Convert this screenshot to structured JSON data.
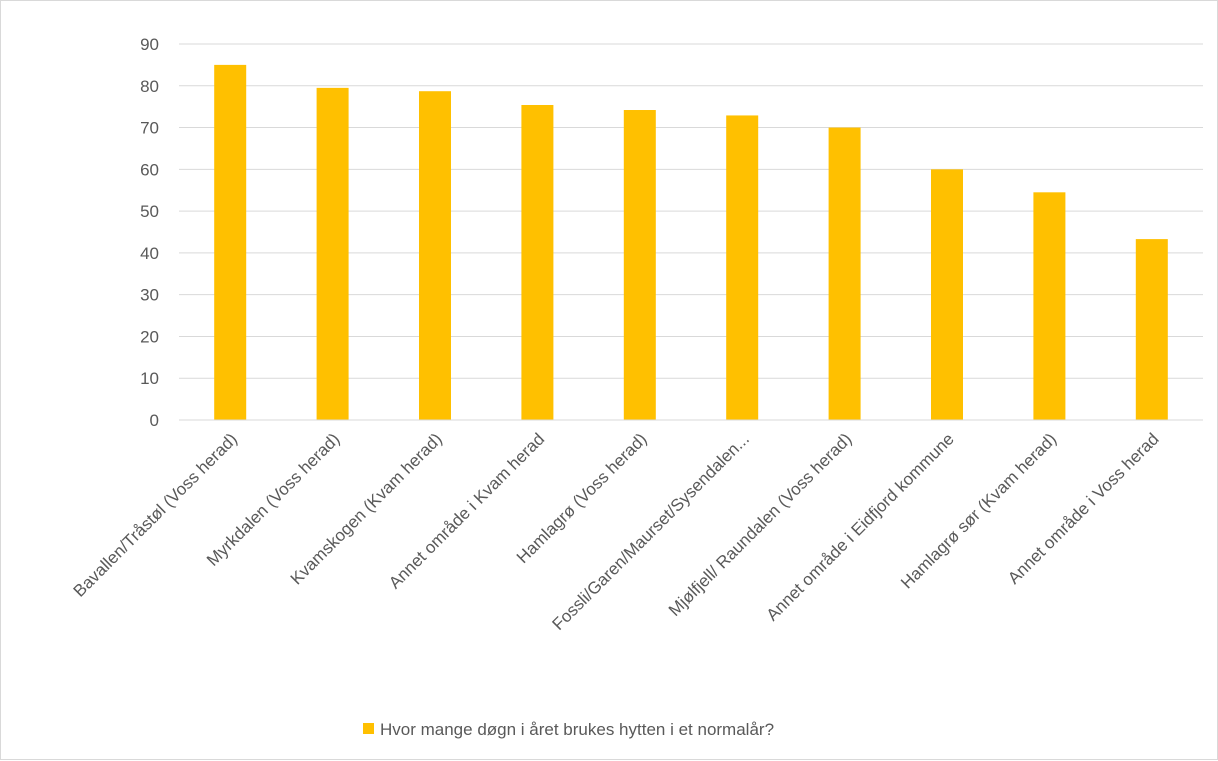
{
  "chart_data": {
    "type": "bar",
    "title": "",
    "xlabel": "",
    "ylabel": "",
    "categories": [
      "Bavallen/Tråstøl (Voss herad)",
      "Myrkdalen (Voss herad)",
      "Kvamskogen (Kvam herad)",
      "Annet område i Kvam herad",
      "Hamlagrø (Voss herad)",
      "Fossli/Garen/Maurset/Sysendalen...",
      "Mjølfjell/ Raundalen (Voss herad)",
      "Annet område i Eidfjord kommune",
      "Hamlagrø sør (Kvam herad)",
      "Annet område i Voss herad"
    ],
    "series": [
      {
        "name": "Hvor mange døgn i året brukes hytten i et normalår?",
        "color": "#FFC000",
        "values": [
          85,
          79.5,
          78.7,
          75.4,
          74.2,
          72.9,
          70,
          60,
          54.5,
          43.3
        ]
      }
    ],
    "ylim": [
      0,
      90
    ],
    "yticks": [
      0,
      10,
      20,
      30,
      40,
      50,
      60,
      70,
      80,
      90
    ],
    "grid": true,
    "gridColor": "#d9d9d9",
    "legend": "bottom"
  }
}
